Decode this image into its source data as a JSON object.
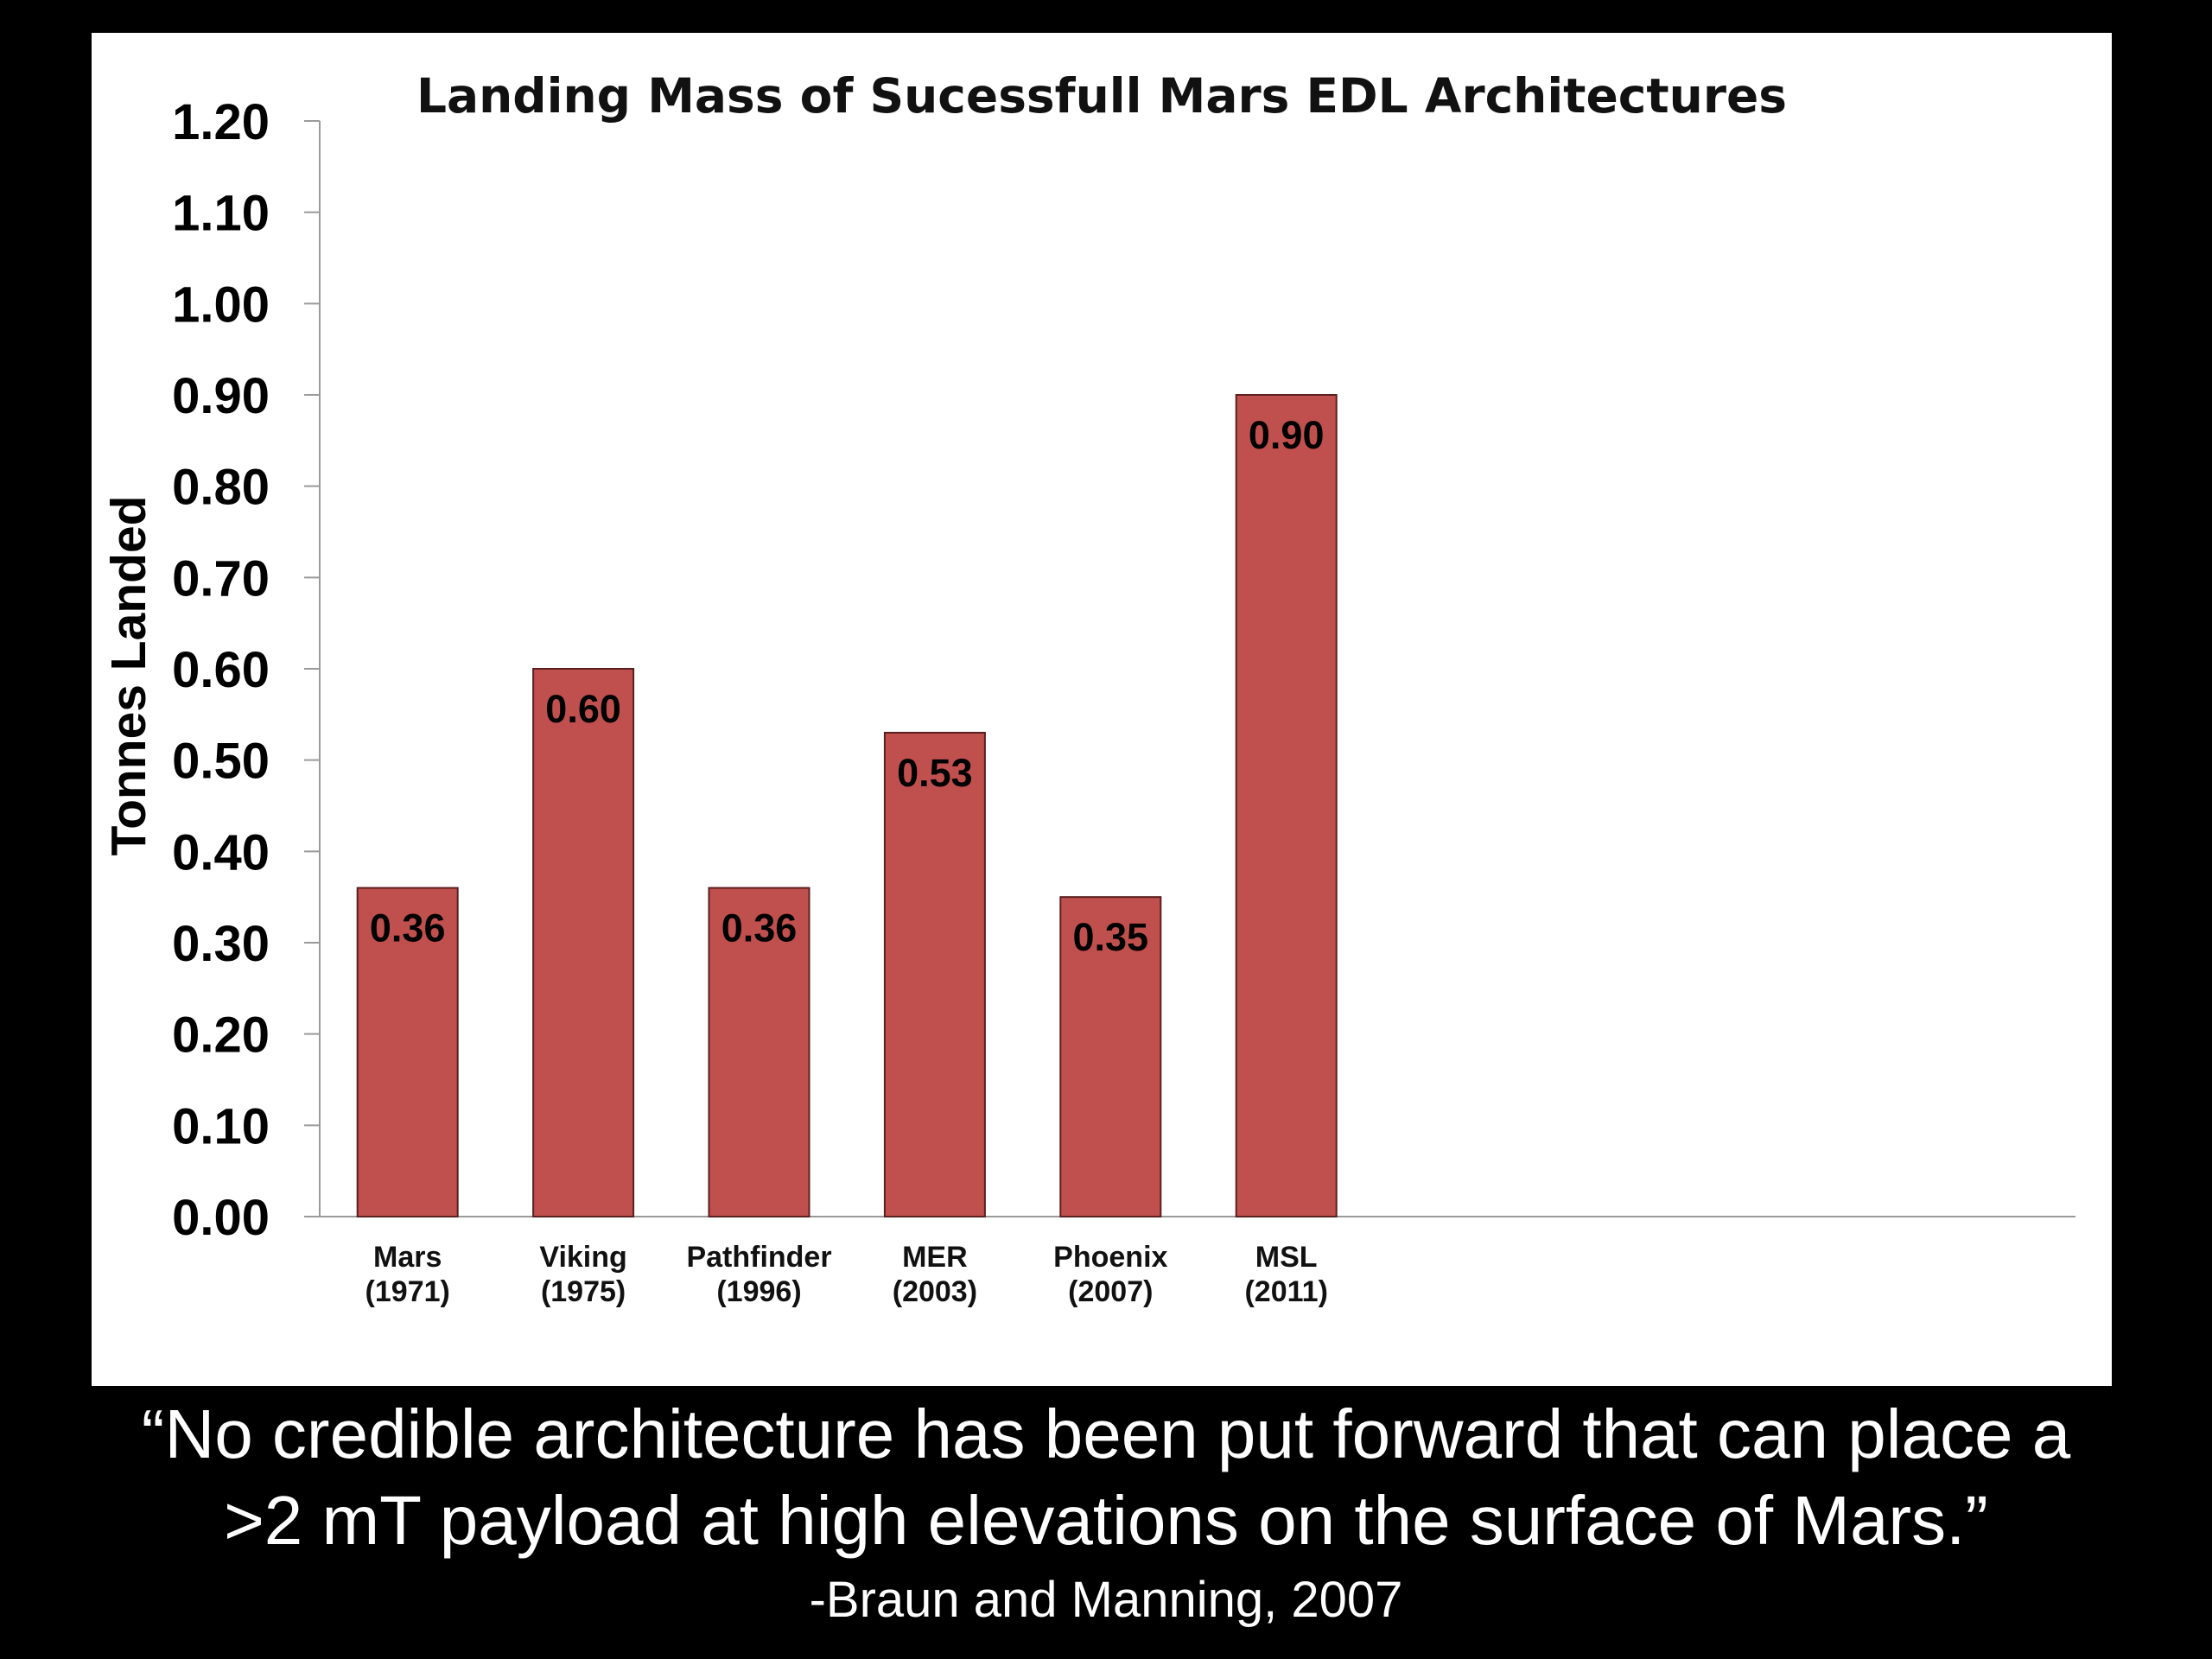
{
  "chart_data": {
    "type": "bar",
    "title": "Landing Mass of Sucessfull Mars EDL Architectures",
    "ylabel": "Tonnes Landed",
    "xlabel": "",
    "ylim": [
      0,
      1.2
    ],
    "yticks": [
      "0.00",
      "0.10",
      "0.20",
      "0.30",
      "0.40",
      "0.50",
      "0.60",
      "0.70",
      "0.80",
      "0.90",
      "1.00",
      "1.10",
      "1.20"
    ],
    "categories": [
      {
        "name": "Mars",
        "year": "(1971)"
      },
      {
        "name": "Viking",
        "year": "(1975)"
      },
      {
        "name": "Pathfinder",
        "year": "(1996)"
      },
      {
        "name": "MER",
        "year": "(2003)"
      },
      {
        "name": "Phoenix",
        "year": "(2007)"
      },
      {
        "name": "MSL",
        "year": "(2011)"
      }
    ],
    "values": [
      0.36,
      0.6,
      0.36,
      0.53,
      0.35,
      0.9
    ],
    "data_labels": [
      "0.36",
      "0.60",
      "0.36",
      "0.53",
      "0.35",
      "0.90"
    ],
    "bar_color": "#c0504d",
    "grid": false,
    "legend": "none"
  },
  "quote": {
    "line1": "“No credible architecture has been put forward that can place a",
    "line2": ">2 mT payload at high elevations on the surface of Mars.”",
    "attribution": "-Braun and Manning, 2007"
  },
  "colors": {
    "background": "#000000",
    "panel": "#ffffff",
    "text_on_dark": "#ffffff"
  }
}
